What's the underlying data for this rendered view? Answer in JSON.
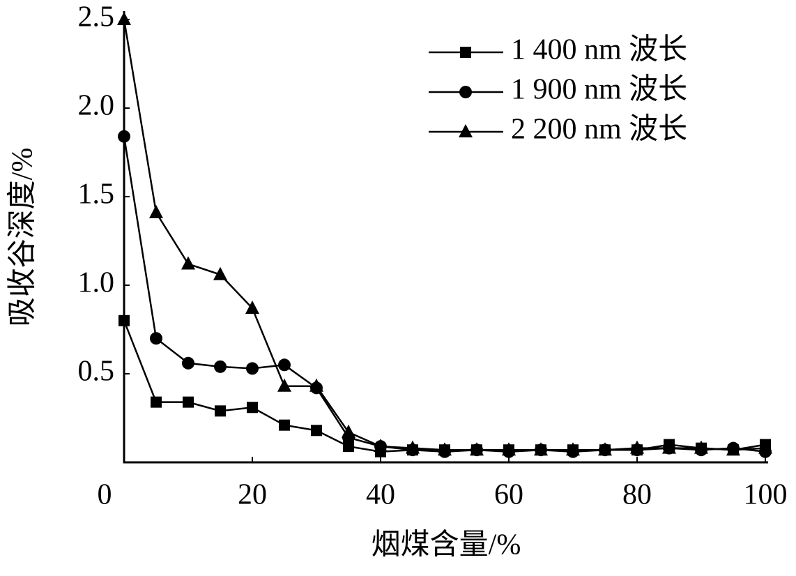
{
  "chart_data": {
    "type": "line",
    "x_label": "烟煤含量/%",
    "y_label": "吸收谷深度/%",
    "x": [
      0,
      5,
      10,
      15,
      20,
      25,
      30,
      35,
      40,
      45,
      50,
      55,
      60,
      65,
      70,
      75,
      80,
      85,
      90,
      95,
      100
    ],
    "series": [
      {
        "name": "1 400 nm 波长",
        "color": "#000000",
        "marker": "square",
        "values": [
          0.8,
          0.34,
          0.34,
          0.29,
          0.31,
          0.21,
          0.18,
          0.09,
          0.06,
          0.07,
          0.07,
          0.07,
          0.07,
          0.07,
          0.07,
          0.07,
          0.07,
          0.1,
          0.08,
          0.07,
          0.1
        ]
      },
      {
        "name": "1 900 nm 波长",
        "color": "#000000",
        "marker": "circle",
        "values": [
          1.84,
          0.7,
          0.56,
          0.54,
          0.53,
          0.55,
          0.42,
          0.14,
          0.09,
          0.07,
          0.06,
          0.07,
          0.06,
          0.07,
          0.06,
          0.07,
          0.07,
          0.08,
          0.07,
          0.08,
          0.06
        ]
      },
      {
        "name": "2 200 nm 波长",
        "color": "#000000",
        "marker": "triangle",
        "values": [
          2.5,
          1.41,
          1.12,
          1.06,
          0.87,
          0.43,
          0.43,
          0.17,
          0.09,
          0.08,
          0.07,
          0.07,
          0.07,
          0.07,
          0.07,
          0.07,
          0.08,
          0.08,
          0.08,
          0.07,
          0.08
        ]
      }
    ],
    "xlim": [
      0,
      100
    ],
    "xticks": [
      0,
      20,
      40,
      60,
      80,
      100
    ],
    "ylim": [
      0,
      2.5
    ],
    "yticks": [
      0.5,
      {
        "value": 1,
        "label": "1.0"
      },
      1.5,
      {
        "value": 2,
        "label": "2.0"
      },
      2.5
    ],
    "grid": false,
    "legend": "upper right"
  }
}
